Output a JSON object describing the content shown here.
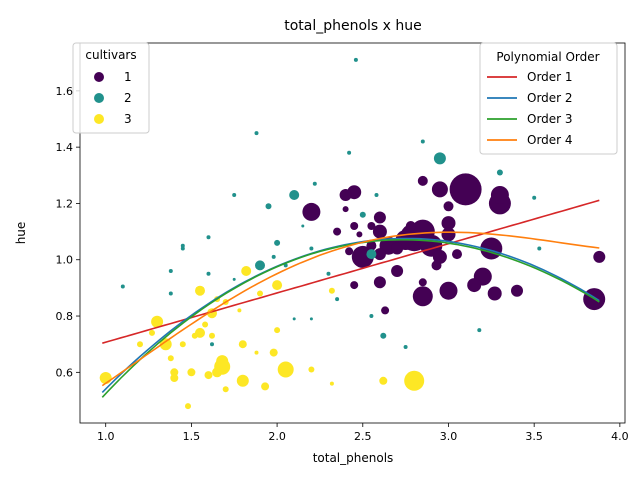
{
  "chart_data": {
    "type": "scatter",
    "title": "total_phenols x hue",
    "xlabel": "total_phenols",
    "ylabel": "hue",
    "xlim": [
      0.85,
      4.03
    ],
    "ylim": [
      0.42,
      1.77
    ],
    "xticks": [
      1.0,
      1.5,
      2.0,
      2.5,
      3.0,
      3.5,
      4.0
    ],
    "yticks": [
      0.6,
      0.8,
      1.0,
      1.2,
      1.4,
      1.6
    ],
    "grid": false,
    "legend_cultivars": {
      "title": "cultivars",
      "placement": "top-left",
      "entries": [
        {
          "label": "1",
          "color": "#440154"
        },
        {
          "label": "2",
          "color": "#21918c"
        },
        {
          "label": "3",
          "color": "#fde725"
        }
      ]
    },
    "legend_order": {
      "title": "Polynomial Order",
      "placement": "top-right",
      "entries": [
        {
          "label": "Order 1",
          "color": "#d62728"
        },
        {
          "label": "Order 2",
          "color": "#1f77b4"
        },
        {
          "label": "Order 3",
          "color": "#2ca02c"
        },
        {
          "label": "Order 4",
          "color": "#ff7f0e"
        }
      ]
    },
    "series": [
      {
        "name": "1",
        "color": "#440154",
        "points": [
          [
            2.8,
            1.08,
            14
          ],
          [
            3.1,
            1.25,
            16
          ],
          [
            2.85,
            1.1,
            12
          ],
          [
            2.9,
            1.05,
            11
          ],
          [
            3.25,
            1.04,
            11
          ],
          [
            3.3,
            1.2,
            11
          ],
          [
            3.3,
            1.23,
            9
          ],
          [
            2.5,
            1.01,
            11
          ],
          [
            2.65,
            1.05,
            9
          ],
          [
            2.75,
            1.07,
            10
          ],
          [
            2.85,
            0.87,
            10
          ],
          [
            3.0,
            0.89,
            9
          ],
          [
            3.2,
            0.94,
            9
          ],
          [
            3.85,
            0.86,
            11
          ],
          [
            2.2,
            1.17,
            9
          ],
          [
            2.95,
            1.25,
            8
          ],
          [
            2.45,
            1.24,
            7
          ],
          [
            2.4,
            1.23,
            6
          ],
          [
            2.6,
            1.15,
            6
          ],
          [
            2.6,
            1.1,
            7
          ],
          [
            3.0,
            1.13,
            7
          ],
          [
            3.0,
            1.09,
            7
          ],
          [
            2.95,
            1.01,
            7
          ],
          [
            2.7,
            0.96,
            6
          ],
          [
            2.6,
            0.92,
            6
          ],
          [
            3.15,
            0.91,
            7
          ],
          [
            3.27,
            0.88,
            7
          ],
          [
            3.4,
            0.89,
            6
          ],
          [
            3.88,
            1.01,
            6
          ],
          [
            2.85,
            1.28,
            5
          ],
          [
            3.0,
            1.19,
            5
          ],
          [
            2.55,
            1.12,
            4
          ],
          [
            2.45,
            1.12,
            4
          ],
          [
            2.35,
            1.1,
            4
          ],
          [
            2.45,
            0.91,
            4
          ],
          [
            2.85,
            0.92,
            4
          ],
          [
            2.6,
            1.02,
            6
          ],
          [
            2.93,
            0.98,
            5
          ],
          [
            2.63,
            0.82,
            4
          ],
          [
            2.4,
            1.18,
            3
          ],
          [
            2.48,
            1.09,
            3
          ],
          [
            2.42,
            1.03,
            4
          ],
          [
            2.7,
            1.04,
            6
          ],
          [
            3.05,
            1.02,
            5
          ],
          [
            2.55,
            1.05,
            5
          ],
          [
            2.78,
            1.12,
            5
          ]
        ]
      },
      {
        "name": "2",
        "color": "#21918c",
        "points": [
          [
            2.95,
            1.36,
            6
          ],
          [
            2.1,
            1.23,
            5
          ],
          [
            1.9,
            0.98,
            5
          ],
          [
            2.55,
            1.02,
            5
          ],
          [
            2.62,
            0.73,
            3
          ],
          [
            2.0,
            1.06,
            3
          ],
          [
            1.95,
            1.19,
            3
          ],
          [
            2.5,
            1.16,
            3
          ],
          [
            1.45,
            1.04,
            2
          ],
          [
            1.38,
            0.96,
            2
          ],
          [
            1.38,
            0.88,
            2
          ],
          [
            2.2,
            1.04,
            2
          ],
          [
            2.85,
            1.42,
            2
          ],
          [
            2.46,
            1.71,
            2
          ],
          [
            1.88,
            1.45,
            2
          ],
          [
            2.42,
            1.38,
            2
          ],
          [
            2.22,
            1.27,
            2
          ],
          [
            3.5,
            1.22,
            2
          ],
          [
            1.75,
            1.23,
            2
          ],
          [
            1.6,
            1.08,
            2
          ],
          [
            1.6,
            0.95,
            2
          ],
          [
            2.05,
            0.98,
            2
          ],
          [
            2.3,
            0.95,
            2
          ],
          [
            2.35,
            0.86,
            2
          ],
          [
            2.55,
            0.8,
            2
          ],
          [
            2.75,
            0.69,
            2
          ],
          [
            3.18,
            0.75,
            2
          ],
          [
            3.53,
            1.04,
            2
          ],
          [
            3.3,
            1.31,
            3
          ],
          [
            1.1,
            0.905,
            2
          ],
          [
            2.2,
            0.79,
            1.5
          ],
          [
            2.1,
            0.79,
            1.5
          ],
          [
            1.62,
            0.7,
            2
          ],
          [
            2.58,
            1.23,
            2
          ],
          [
            1.45,
            1.05,
            2
          ],
          [
            2.15,
            1.12,
            1.5
          ],
          [
            1.75,
            0.93,
            1.5
          ],
          [
            1.98,
            1.01,
            2
          ]
        ]
      },
      {
        "name": "3",
        "color": "#fde725",
        "points": [
          [
            2.8,
            0.57,
            10
          ],
          [
            2.05,
            0.61,
            8
          ],
          [
            1.68,
            0.62,
            8
          ],
          [
            1.68,
            0.64,
            6
          ],
          [
            1.8,
            0.57,
            6
          ],
          [
            1.3,
            0.78,
            6
          ],
          [
            1.35,
            0.7,
            6
          ],
          [
            1.55,
            0.74,
            5
          ],
          [
            1.55,
            0.89,
            5
          ],
          [
            1.62,
            0.81,
            5
          ],
          [
            2.0,
            0.91,
            5
          ],
          [
            1.65,
            0.6,
            5
          ],
          [
            1.4,
            0.58,
            4
          ],
          [
            1.4,
            0.6,
            4
          ],
          [
            1.5,
            0.6,
            4
          ],
          [
            1.6,
            0.59,
            4
          ],
          [
            1.93,
            0.55,
            4
          ],
          [
            2.62,
            0.57,
            4
          ],
          [
            1.82,
            0.96,
            5
          ],
          [
            1.8,
            0.7,
            4
          ],
          [
            1.2,
            0.7,
            3
          ],
          [
            1.27,
            0.74,
            3
          ],
          [
            1.48,
            0.48,
            3
          ],
          [
            1.7,
            0.54,
            3
          ],
          [
            1.7,
            0.85,
            3
          ],
          [
            1.98,
            0.67,
            4
          ],
          [
            2.2,
            0.61,
            3
          ],
          [
            2.32,
            0.89,
            3
          ],
          [
            2.0,
            0.75,
            3
          ],
          [
            1.0,
            0.58,
            6
          ],
          [
            1.45,
            0.7,
            3
          ],
          [
            1.58,
            0.77,
            3
          ],
          [
            1.62,
            0.73,
            3
          ],
          [
            1.65,
            0.86,
            3
          ],
          [
            1.38,
            0.65,
            3
          ],
          [
            1.9,
            0.88,
            3
          ],
          [
            2.32,
            0.56,
            2
          ],
          [
            1.88,
            0.67,
            2
          ],
          [
            1.52,
            0.73,
            3
          ],
          [
            1.78,
            0.82,
            2
          ]
        ]
      }
    ],
    "fits": [
      {
        "name": "Order 1",
        "color": "#d62728",
        "coef": [
          0.532,
          0.175
        ],
        "xrange": [
          0.98,
          3.88
        ]
      },
      {
        "name": "Order 2",
        "color": "#1f77b4",
        "coef": [
          -0.243,
          0.958,
          -0.174
        ],
        "xrange": [
          0.98,
          3.88
        ]
      },
      {
        "name": "Order 3",
        "color": "#2ca02c",
        "coef": [
          -0.3195,
          1.0493,
          -0.2098,
          0.0044
        ],
        "xrange": [
          0.98,
          3.88
        ]
      },
      {
        "name": "Order 4",
        "color": "#ff7f0e",
        "coef": [
          0.322,
          -0.072,
          0.4645,
          -0.1709,
          0.0176
        ],
        "xrange": [
          0.98,
          3.88
        ]
      }
    ]
  }
}
